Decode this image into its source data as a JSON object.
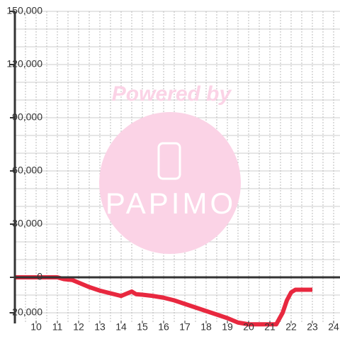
{
  "chart_data": {
    "type": "line",
    "watermark": {
      "line1": "Powered by",
      "line2": "PAPIMO"
    },
    "x": [
      9,
      11,
      11.3,
      11.7,
      12,
      12.5,
      13,
      13.5,
      14,
      14.5,
      14.7,
      15,
      15.5,
      16,
      16.5,
      17,
      17.5,
      18,
      18.5,
      19,
      19.5,
      20,
      21.3,
      21.6,
      21.8,
      22,
      22.2,
      23
    ],
    "series": [
      {
        "color": "#e8283f",
        "values": [
          0,
          0,
          -1000,
          -1500,
          -3000,
          -5500,
          -7500,
          -9000,
          -10500,
          -8000,
          -9500,
          -9800,
          -10500,
          -11500,
          -13000,
          -15000,
          -17000,
          -19000,
          -21000,
          -23000,
          -25500,
          -26500,
          -26500,
          -20000,
          -13000,
          -8500,
          -7000,
          -7000
        ]
      }
    ],
    "xlim": [
      9,
      24.3
    ],
    "xticks": [
      10,
      11,
      12,
      13,
      14,
      15,
      16,
      17,
      18,
      19,
      20,
      21,
      22,
      23,
      24
    ],
    "xminor": [
      9.5,
      10,
      10.5,
      11,
      11.5,
      12,
      12.5,
      13,
      13.5,
      14,
      14.5,
      15,
      15.5,
      16,
      16.5,
      17,
      17.5,
      18,
      18.5,
      19,
      19.5,
      20,
      20.5,
      21,
      21.5,
      22,
      22.5,
      23,
      23.5,
      24
    ],
    "ylim": [
      -26000,
      150000
    ],
    "yticks": [
      {
        "value": -20000,
        "label": "-20,000"
      },
      0,
      {
        "value": 30000,
        "label": "30,000"
      },
      {
        "value": 60000,
        "label": "60,000"
      },
      {
        "value": 90000,
        "label": "90,000"
      },
      {
        "value": 120000,
        "label": "120,000"
      },
      {
        "value": 150000,
        "label": "150,000"
      }
    ],
    "yminor": [
      -20000,
      -10000,
      10000,
      20000,
      30000,
      40000,
      50000,
      60000,
      70000,
      80000,
      90000,
      100000,
      110000,
      120000,
      130000,
      140000,
      150000
    ],
    "grid": true
  }
}
